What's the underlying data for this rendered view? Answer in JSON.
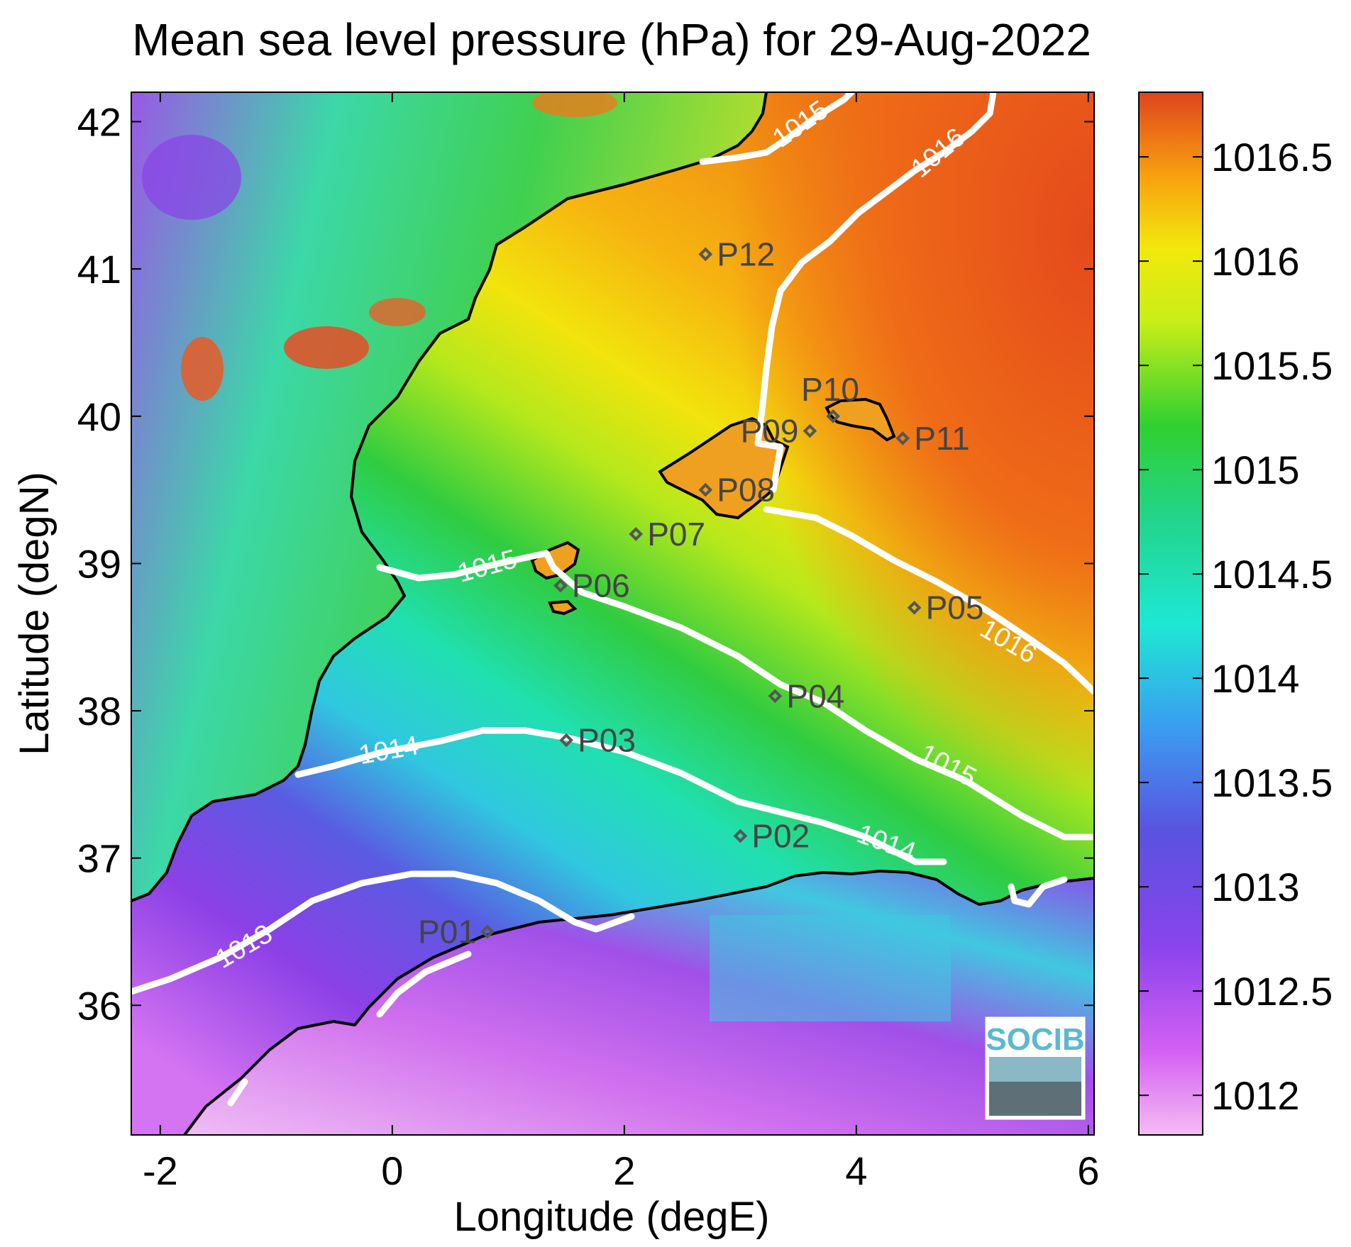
{
  "title": "Mean sea level pressure (hPa) for 29-Aug-2022",
  "xlabel": "Longitude (degE)",
  "ylabel": "Latitude (degN)",
  "x_ticks": [
    "-2",
    "0",
    "2",
    "4",
    "6"
  ],
  "y_ticks": [
    "42",
    "41",
    "40",
    "39",
    "38",
    "37",
    "36"
  ],
  "colorbar_ticks": [
    "1016.5",
    "1016",
    "1015.5",
    "1015",
    "1014.5",
    "1014",
    "1013.5",
    "1013",
    "1012.5",
    "1012"
  ],
  "contour_labels": [
    "1013",
    "1014",
    "1014",
    "1015",
    "1015",
    "1015",
    "1016",
    "1016"
  ],
  "stations": [
    {
      "id": "P01",
      "lon": 0.82,
      "lat": 36.5
    },
    {
      "id": "P02",
      "lon": 3.0,
      "lat": 37.15
    },
    {
      "id": "P03",
      "lon": 1.5,
      "lat": 37.8
    },
    {
      "id": "P04",
      "lon": 3.3,
      "lat": 38.1
    },
    {
      "id": "P05",
      "lon": 4.5,
      "lat": 38.7
    },
    {
      "id": "P06",
      "lon": 1.45,
      "lat": 38.85
    },
    {
      "id": "P07",
      "lon": 2.1,
      "lat": 39.2
    },
    {
      "id": "P08",
      "lon": 2.7,
      "lat": 39.5
    },
    {
      "id": "P09",
      "lon": 3.6,
      "lat": 39.9
    },
    {
      "id": "P10",
      "lon": 3.8,
      "lat": 40.0
    },
    {
      "id": "P11",
      "lon": 4.4,
      "lat": 39.85
    },
    {
      "id": "P12",
      "lon": 2.7,
      "lat": 41.1
    }
  ],
  "logo": "SOCIB",
  "colors": {
    "low": "#f4b4f0",
    "mid": "#22d4c8",
    "high": "#e0401c"
  }
}
